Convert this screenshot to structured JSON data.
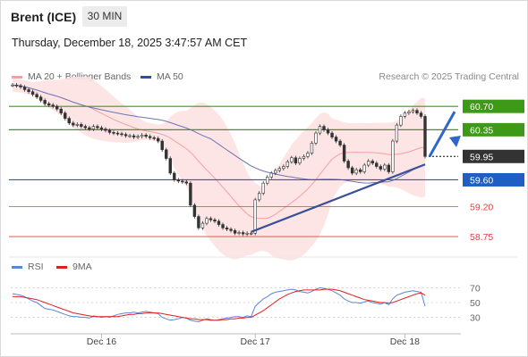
{
  "header": {
    "instrument": "Brent (ICE)",
    "timeframe": "30 MIN",
    "datetime": "Thursday, December 18, 2025 3:47:57 AM CET"
  },
  "legend": {
    "ma20": "MA 20 + Bollinger Bands",
    "ma50": "MA 50",
    "credit": "Research © 2025 Trading Central",
    "rsi": "RSI",
    "ma9": "9MA"
  },
  "colors": {
    "ma20": "#f4a0a0",
    "band": "#fde2e2",
    "ma50": "#6b74b8",
    "green_level": "#3c9a17",
    "blue_level": "#1f5fc4",
    "red_level": "#e04040",
    "price": "#333333",
    "rsi": "#5b86d6",
    "rsi_ma": "#e02020"
  },
  "chart_data": {
    "type": "candlestick",
    "price_axis": {
      "min": 58.55,
      "max": 61.05
    },
    "levels": [
      {
        "value": "60.70",
        "kind": "resistance",
        "color": "#3c9a17"
      },
      {
        "value": "60.35",
        "kind": "resistance",
        "color": "#3c9a17"
      },
      {
        "value": "59.95",
        "kind": "current",
        "color": "#333333"
      },
      {
        "value": "59.60",
        "kind": "pivot",
        "color": "#1f5fc4"
      },
      {
        "value": "59.20",
        "kind": "support",
        "color": "#e04040"
      },
      {
        "value": "58.75",
        "kind": "support",
        "color": "#e04040"
      }
    ],
    "x_labels": [
      "Dec 16",
      "Dec 17",
      "Dec 18"
    ],
    "x_label_index": [
      22,
      60,
      97
    ],
    "closes": [
      61.02,
      61.01,
      60.99,
      60.95,
      60.92,
      60.88,
      60.84,
      60.79,
      60.74,
      60.72,
      60.7,
      60.66,
      60.6,
      60.52,
      60.45,
      60.42,
      60.43,
      60.4,
      60.38,
      60.36,
      60.4,
      60.38,
      60.36,
      60.34,
      60.31,
      60.3,
      60.29,
      60.28,
      60.26,
      60.26,
      60.24,
      60.25,
      60.27,
      60.25,
      60.23,
      60.22,
      60.18,
      60.05,
      59.92,
      59.7,
      59.6,
      59.58,
      59.57,
      59.55,
      59.22,
      59.05,
      58.88,
      58.95,
      59.02,
      59.0,
      58.98,
      58.93,
      58.88,
      58.86,
      58.84,
      58.8,
      58.81,
      58.79,
      58.8,
      58.8,
      59.3,
      59.4,
      59.55,
      59.64,
      59.7,
      59.74,
      59.77,
      59.8,
      59.87,
      59.93,
      59.85,
      59.92,
      59.95,
      60.0,
      60.15,
      60.3,
      60.4,
      60.35,
      60.3,
      60.24,
      60.18,
      60.12,
      59.88,
      59.78,
      59.7,
      59.75,
      59.72,
      59.82,
      59.88,
      59.85,
      59.8,
      59.76,
      59.82,
      59.72,
      60.18,
      60.42,
      60.55,
      60.6,
      60.62,
      60.64,
      60.6,
      60.55,
      59.95
    ],
    "rsi": {
      "ticks": [
        "70",
        "50",
        "30"
      ],
      "min": 15,
      "max": 85,
      "values": [
        62,
        61,
        60,
        58,
        55,
        52,
        50,
        46,
        42,
        41,
        40,
        38,
        36,
        34,
        32,
        31,
        31,
        30,
        30,
        29,
        32,
        31,
        30,
        31,
        30,
        32,
        34,
        35,
        36,
        36,
        37,
        36,
        37,
        38,
        37,
        36,
        35,
        30,
        28,
        26,
        27,
        28,
        30,
        29,
        26,
        25,
        24,
        26,
        28,
        27,
        26,
        27,
        28,
        29,
        30,
        31,
        31,
        30,
        32,
        31,
        45,
        50,
        55,
        58,
        62,
        64,
        65,
        66,
        67,
        68,
        67,
        65,
        64,
        63,
        65,
        68,
        70,
        69,
        68,
        66,
        63,
        60,
        55,
        52,
        50,
        50,
        49,
        51,
        52,
        50,
        49,
        48,
        50,
        47,
        55,
        60,
        62,
        64,
        65,
        66,
        65,
        64,
        45
      ],
      "ma9_values": [
        58,
        58,
        58,
        57,
        56,
        55,
        54,
        52,
        50,
        48,
        46,
        44,
        42,
        40,
        38,
        36,
        35,
        34,
        33,
        32,
        31,
        31,
        31,
        31,
        31,
        31,
        31,
        32,
        33,
        34,
        34,
        35,
        35,
        36,
        36,
        36,
        36,
        35,
        34,
        33,
        32,
        31,
        30,
        29,
        28,
        28,
        27,
        27,
        27,
        26,
        26,
        26,
        27,
        27,
        28,
        28,
        29,
        29,
        30,
        30,
        33,
        36,
        39,
        43,
        47,
        51,
        55,
        58,
        61,
        63,
        65,
        66,
        67,
        67,
        67,
        67,
        67,
        68,
        68,
        68,
        67,
        66,
        64,
        62,
        60,
        58,
        56,
        54,
        53,
        52,
        51,
        50,
        50,
        49,
        50,
        52,
        54,
        56,
        58,
        60,
        62,
        63,
        60
      ]
    }
  }
}
